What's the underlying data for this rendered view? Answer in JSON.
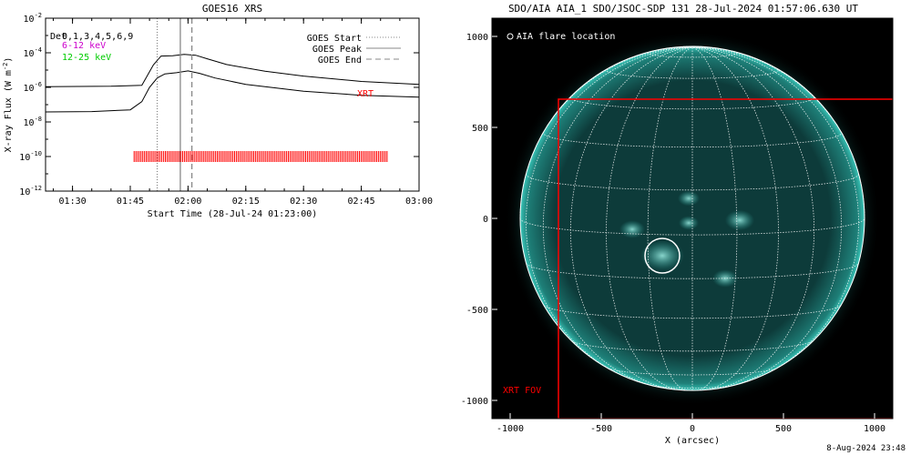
{
  "chart_data": [
    {
      "type": "line",
      "title": "GOES16 XRS",
      "xlabel": "Start Time (28-Jul-24 01:23:00)",
      "ylabel": "X-ray Flux (W m",
      "ylabel_sup": "-2",
      "ylabel_close": ")",
      "yscale": "log",
      "ylim": [
        1e-12,
        0.01
      ],
      "xlim": [
        "01:23",
        "03:00"
      ],
      "xticks": [
        "01:30",
        "01:45",
        "02:00",
        "02:15",
        "02:30",
        "02:45",
        "03:00"
      ],
      "yticks": [
        {
          "value": -2,
          "base": "10",
          "exp": "-2"
        },
        {
          "value": -4,
          "base": "10",
          "exp": "-4"
        },
        {
          "value": -6,
          "base": "10",
          "exp": "-6"
        },
        {
          "value": -8,
          "base": "10",
          "exp": "-8"
        },
        {
          "value": -10,
          "base": "10",
          "exp": "-10"
        },
        {
          "value": -12,
          "base": "10",
          "exp": "-12"
        }
      ],
      "series": [
        {
          "style": "solid",
          "color": "#000000",
          "x": [
            "01:23",
            "01:40",
            "01:48",
            "01:51",
            "01:53",
            "01:56",
            "01:59",
            "02:02",
            "02:05",
            "02:10",
            "02:20",
            "02:30",
            "02:45",
            "03:00"
          ],
          "y": [
            1.1e-06,
            1.15e-06,
            1.3e-06,
            2e-05,
            6.5e-05,
            6.8e-05,
            8e-05,
            7.2e-05,
            4.5e-05,
            2.1e-05,
            8.5e-06,
            4.5e-06,
            2.2e-06,
            1.5e-06
          ]
        },
        {
          "style": "solid",
          "color": "#000000",
          "x": [
            "01:23",
            "01:35",
            "01:45",
            "01:48",
            "01:50",
            "01:52",
            "01:54",
            "01:57",
            "02:00",
            "02:03",
            "02:07",
            "02:15",
            "02:30",
            "02:45",
            "03:00"
          ],
          "y": [
            3.8e-08,
            4e-08,
            5e-08,
            1.5e-07,
            1e-06,
            3.5e-06,
            6e-06,
            7e-06,
            9e-06,
            6.5e-06,
            3.5e-06,
            1.5e-06,
            6e-07,
            3.5e-07,
            2.7e-07
          ]
        }
      ],
      "vlines": [
        {
          "label": "GOES Start",
          "x": "01:52",
          "style": "dotted",
          "color": "#888888"
        },
        {
          "label": "GOES Peak",
          "x": "01:58",
          "style": "solid",
          "color": "#888888"
        },
        {
          "label": "GOES End",
          "x": "02:01",
          "style": "dashed",
          "color": "#888888"
        }
      ],
      "legend_position": "top-right",
      "channel_labels": [
        {
          "text": "Det",
          "color": "#000000"
        },
        {
          "text": "0,1,3,4,5,6,9",
          "color": "#000000"
        },
        {
          "text": "6-12 keV",
          "color": "#cc00cc"
        },
        {
          "text": "12-25 keV",
          "color": "#00cc00"
        }
      ],
      "xrt": {
        "label": "XRT",
        "color": "#ff0000",
        "observation_window": [
          "01:46",
          "02:52"
        ],
        "flux_level": 1e-10
      }
    },
    {
      "type": "image",
      "title": "SDO/AIA AIA_1 SDO/JSOC-SDP 131 28-Jul-2024 01:57:06.630 UT",
      "xlabel": "X (arcsec)",
      "xlim": [
        -1100,
        1100
      ],
      "ylim": [
        -1100,
        1100
      ],
      "xticks": [
        "-1000",
        "-500",
        "0",
        "500",
        "1000"
      ],
      "yticks": [
        "1000",
        "500",
        "0",
        "-500",
        "-1000"
      ],
      "legend_label": "AIA flare location",
      "solar_radius": 945,
      "flare_location": [
        -165,
        -205
      ],
      "xrt_fov_label": "XRT FOV",
      "xrt_fov": {
        "x": [
          -735,
          1130
        ],
        "y": [
          -1100,
          655
        ]
      },
      "colors": {
        "disk": "#0d3b3a",
        "limb": "#3ac5b8",
        "grid": "#ffffff",
        "fov": "#ff0000"
      }
    }
  ],
  "footer": "8-Aug-2024 23:48"
}
